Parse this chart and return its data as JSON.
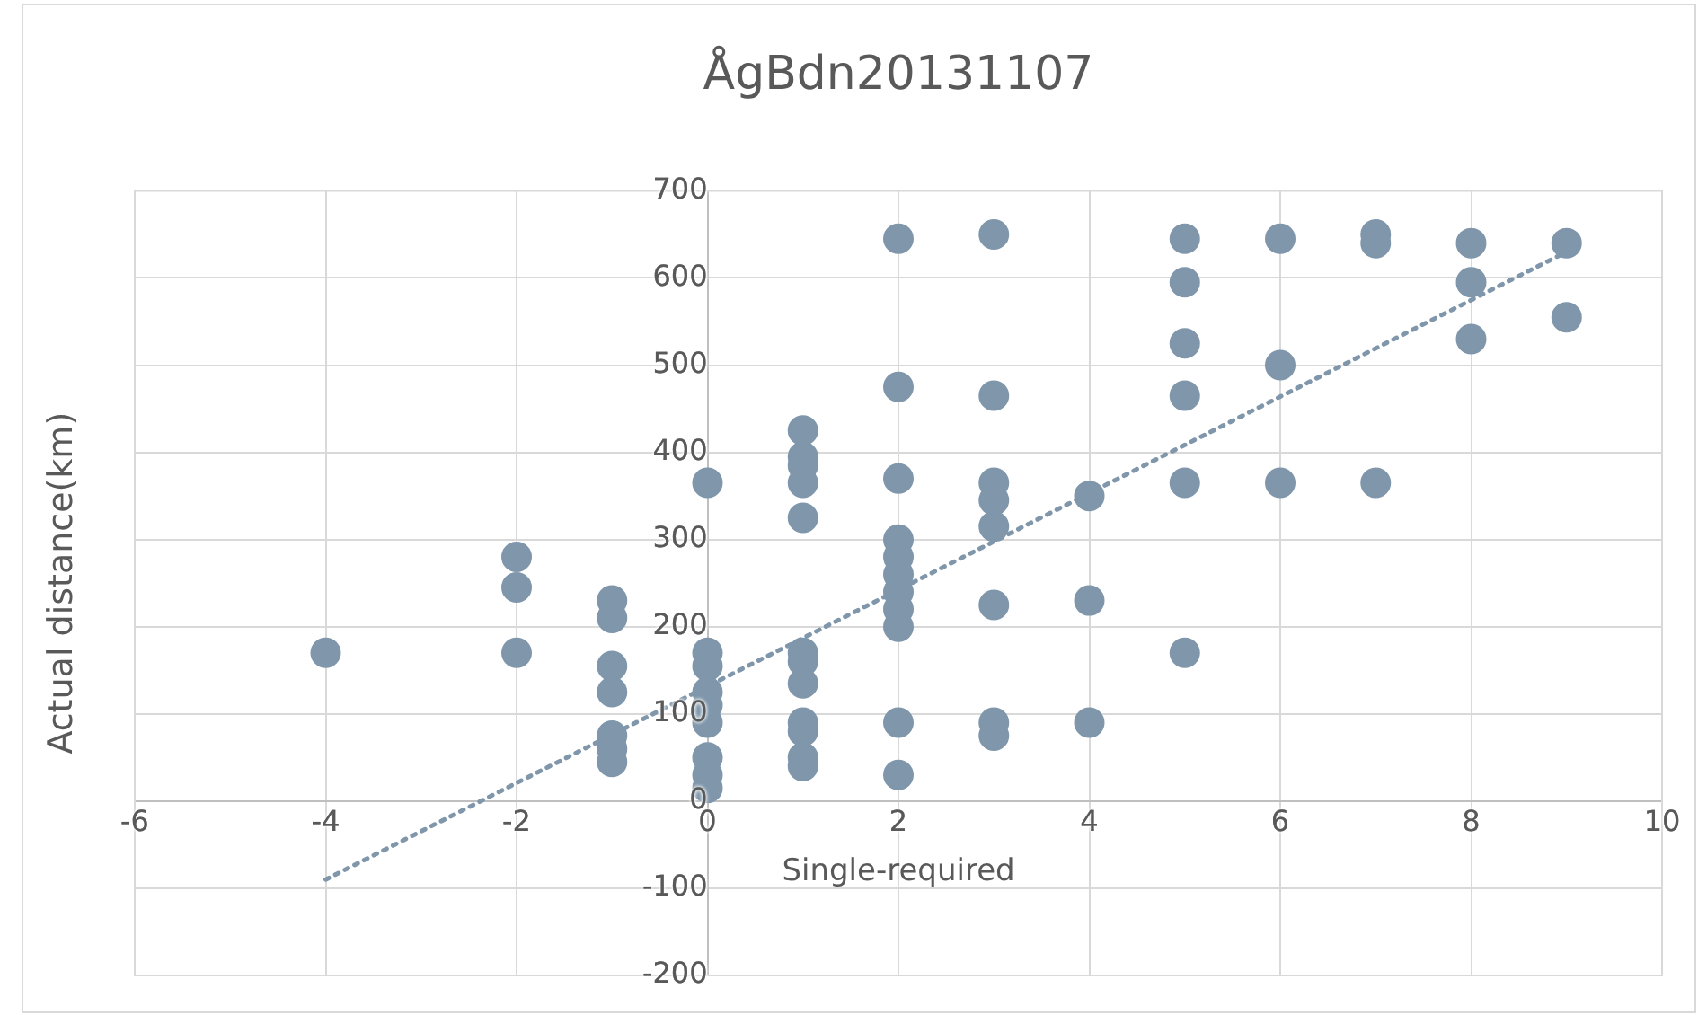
{
  "chart_data": {
    "type": "scatter",
    "title": "ÅgBdn20131107",
    "xlabel": "Single-required",
    "ylabel": "Actual distance(km)",
    "xlim": [
      -6,
      10
    ],
    "xticks": [
      -6,
      -4,
      -2,
      0,
      2,
      4,
      6,
      8,
      10
    ],
    "ylim": [
      -200,
      700
    ],
    "yticks": [
      -200,
      -100,
      0,
      100,
      200,
      300,
      400,
      500,
      600,
      700
    ],
    "grid": true,
    "legend": false,
    "marker": "circle",
    "series": [
      {
        "color": "#7f96ab",
        "x": [
          -4,
          -2,
          -2,
          -2,
          -1,
          -1,
          -1,
          -1,
          -1,
          -1,
          -1,
          0,
          0,
          0,
          0,
          0,
          0,
          0,
          0,
          0,
          1,
          1,
          1,
          1,
          1,
          1,
          1,
          1,
          1,
          1,
          1,
          1,
          2,
          2,
          2,
          2,
          2,
          2,
          2,
          2,
          2,
          2,
          2,
          3,
          3,
          3,
          3,
          3,
          3,
          3,
          3,
          4,
          4,
          4,
          5,
          5,
          5,
          5,
          5,
          5,
          6,
          6,
          6,
          7,
          7,
          7,
          8,
          8,
          8,
          9,
          9
        ],
        "values": [
          170,
          280,
          245,
          170,
          230,
          210,
          155,
          125,
          75,
          60,
          45,
          365,
          170,
          155,
          125,
          110,
          90,
          50,
          30,
          15,
          425,
          395,
          385,
          365,
          325,
          170,
          160,
          135,
          90,
          80,
          50,
          40,
          645,
          475,
          370,
          300,
          280,
          260,
          240,
          220,
          200,
          90,
          30,
          650,
          465,
          365,
          345,
          315,
          225,
          90,
          75,
          350,
          230,
          90,
          645,
          595,
          525,
          465,
          365,
          170,
          645,
          500,
          365,
          650,
          640,
          365,
          640,
          595,
          530,
          640,
          555
        ]
      },
      {
        "type": "line",
        "color": "#7f96ab",
        "line_style": "dotted",
        "marker": "none",
        "x": [
          -4,
          9
        ],
        "values": [
          -90,
          630
        ]
      }
    ]
  }
}
